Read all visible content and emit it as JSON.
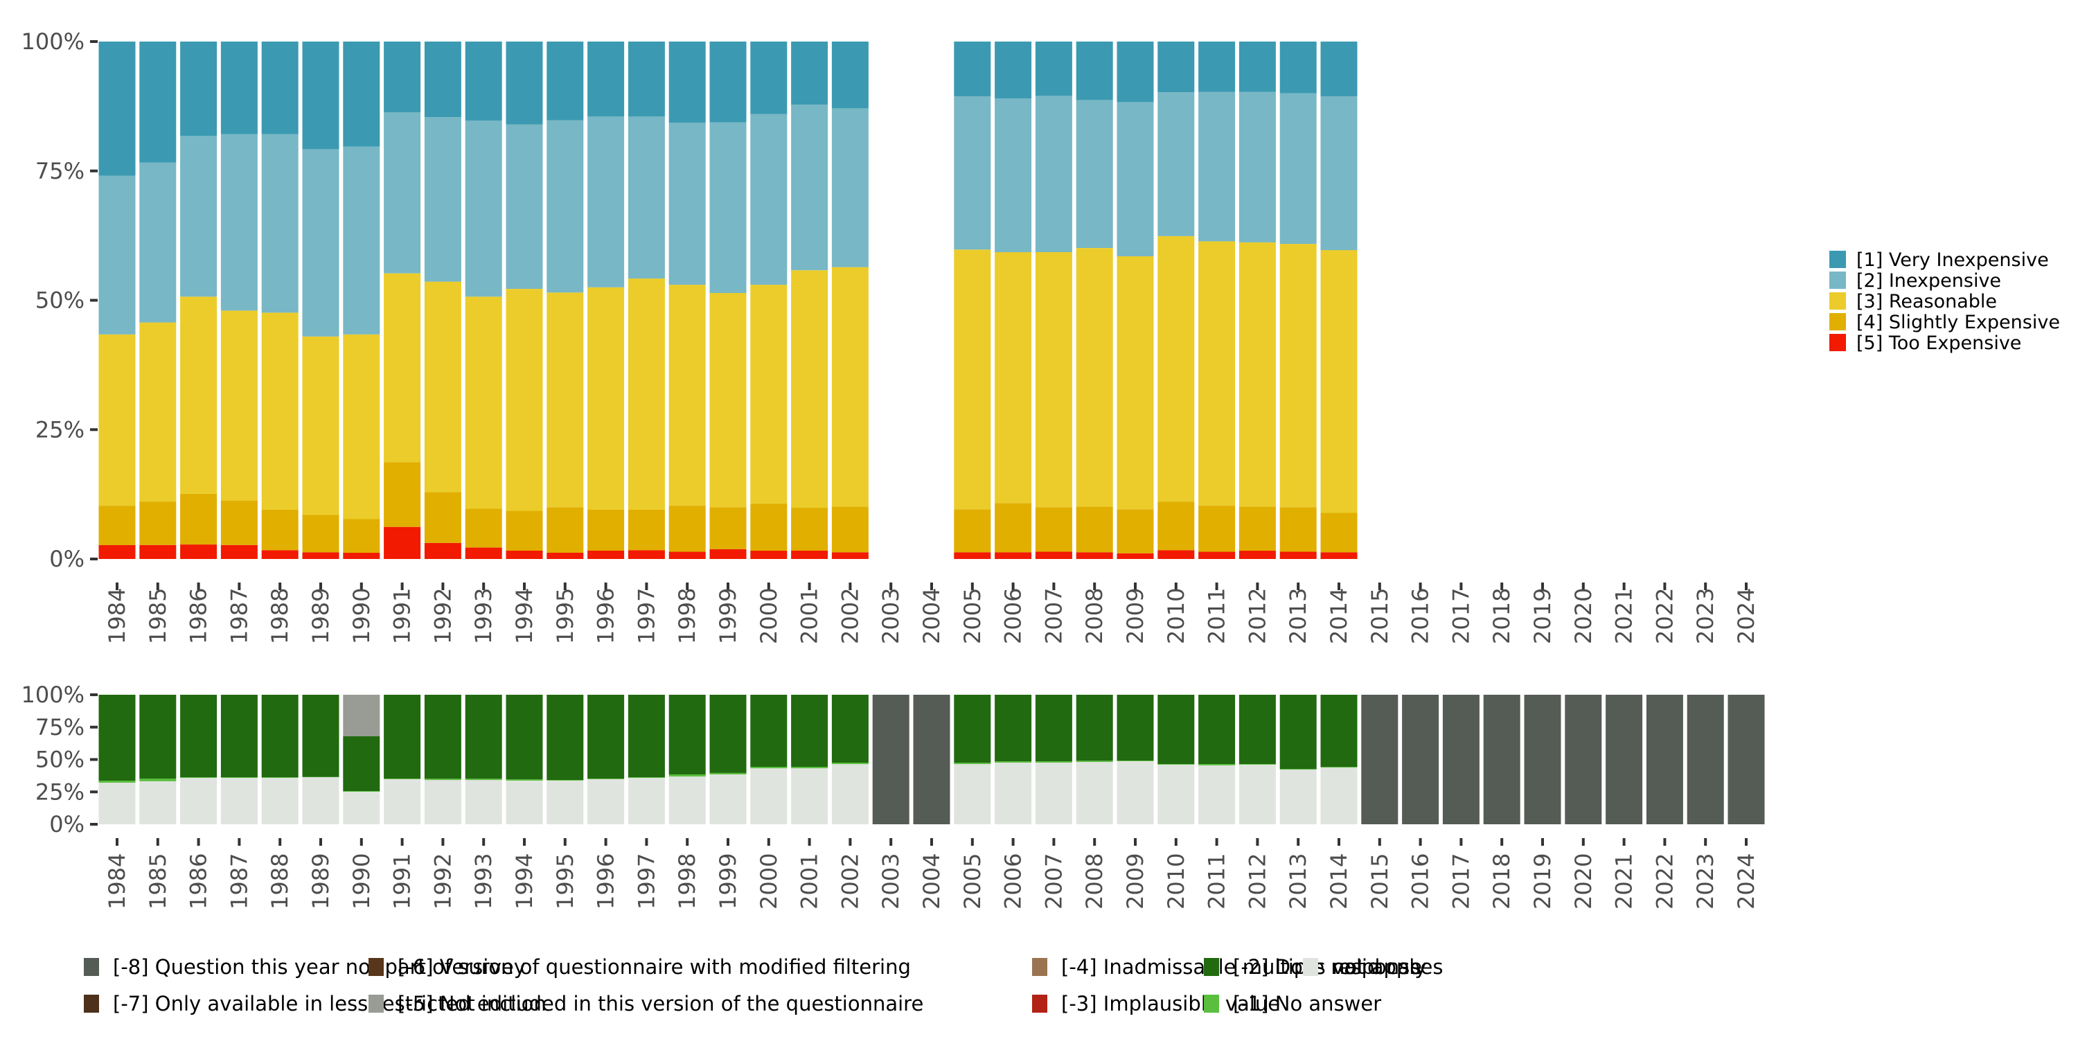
{
  "chart_data": [
    {
      "id": "main",
      "type": "bar",
      "stacked": true,
      "orientation": "vertical",
      "title": "",
      "xlabel": "",
      "ylabel": "",
      "ylim": [
        0,
        100
      ],
      "yticks": [
        "0%",
        "25%",
        "50%",
        "75%",
        "100%"
      ],
      "ytick_values": [
        0,
        25,
        50,
        75,
        100
      ],
      "categories": [
        "1984",
        "1985",
        "1986",
        "1987",
        "1988",
        "1989",
        "1990",
        "1991",
        "1992",
        "1993",
        "1994",
        "1995",
        "1996",
        "1997",
        "1998",
        "1999",
        "2000",
        "2001",
        "2002",
        "2003",
        "2004",
        "2005",
        "2006",
        "2007",
        "2008",
        "2009",
        "2010",
        "2011",
        "2012",
        "2013",
        "2014",
        "2015",
        "2016",
        "2017",
        "2018",
        "2019",
        "2020",
        "2021",
        "2022",
        "2023",
        "2024"
      ],
      "legend_position": "right",
      "series": [
        {
          "name": "[5] Too Expensive",
          "color": "#f21a00",
          "values": [
            2.7,
            2.7,
            2.8,
            2.7,
            1.7,
            1.3,
            1.2,
            6.2,
            3.1,
            2.2,
            1.6,
            1.2,
            1.6,
            1.7,
            1.4,
            1.9,
            1.6,
            1.6,
            1.3,
            null,
            null,
            1.3,
            1.3,
            1.4,
            1.3,
            1.1,
            1.7,
            1.4,
            1.6,
            1.4,
            1.3,
            null,
            null,
            null,
            null,
            null,
            null,
            null,
            null,
            null,
            null
          ]
        },
        {
          "name": "[4] Slightly Expensive",
          "color": "#e1af00",
          "values": [
            7.6,
            8.4,
            9.8,
            8.6,
            7.8,
            7.2,
            6.5,
            12.5,
            9.8,
            7.5,
            7.7,
            8.8,
            7.9,
            7.8,
            8.9,
            8.1,
            9.1,
            8.3,
            8.8,
            null,
            null,
            8.3,
            9.5,
            8.6,
            8.8,
            8.5,
            9.4,
            8.9,
            8.5,
            8.6,
            7.6,
            null,
            null,
            null,
            null,
            null,
            null,
            null,
            null,
            null,
            null
          ]
        },
        {
          "name": "[3] Reasonable",
          "color": "#ebcc2a",
          "values": [
            33.1,
            34.6,
            38.1,
            36.7,
            38.1,
            34.5,
            35.7,
            36.5,
            40.7,
            41.0,
            42.9,
            41.5,
            43.0,
            44.7,
            42.7,
            41.4,
            42.3,
            45.9,
            46.3,
            null,
            null,
            50.2,
            48.5,
            49.3,
            50.0,
            48.9,
            51.3,
            51.1,
            51.1,
            50.9,
            50.8,
            null,
            null,
            null,
            null,
            null,
            null,
            null,
            null,
            null,
            null
          ]
        },
        {
          "name": "[2] Inexpensive",
          "color": "#78b7c5",
          "values": [
            30.7,
            30.9,
            31.1,
            34.1,
            34.5,
            36.2,
            36.3,
            31.1,
            31.8,
            34.0,
            31.8,
            33.3,
            33.0,
            31.3,
            31.3,
            33.0,
            33.0,
            32.0,
            30.7,
            null,
            null,
            29.6,
            29.7,
            30.2,
            28.6,
            29.8,
            27.8,
            28.9,
            29.1,
            29.1,
            29.7,
            null,
            null,
            null,
            null,
            null,
            null,
            null,
            null,
            null,
            null
          ]
        },
        {
          "name": "[1] Very Inexpensive",
          "color": "#3b9ab2",
          "values": [
            25.9,
            23.4,
            18.2,
            17.9,
            17.9,
            20.8,
            20.3,
            13.7,
            14.6,
            15.3,
            16.0,
            15.2,
            14.5,
            14.5,
            15.7,
            15.6,
            14.0,
            12.2,
            12.9,
            null,
            null,
            10.6,
            11.0,
            10.5,
            11.3,
            11.7,
            9.8,
            9.7,
            9.7,
            10.0,
            10.6,
            null,
            null,
            null,
            null,
            null,
            null,
            null,
            null,
            null,
            null
          ]
        }
      ]
    },
    {
      "id": "missing",
      "type": "bar",
      "stacked": true,
      "orientation": "vertical",
      "title": "",
      "xlabel": "",
      "ylabel": "",
      "ylim": [
        0,
        100
      ],
      "yticks": [
        "0%",
        "25%",
        "50%",
        "75%",
        "100%"
      ],
      "ytick_values": [
        0,
        25,
        50,
        75,
        100
      ],
      "categories": [
        "1984",
        "1985",
        "1986",
        "1987",
        "1988",
        "1989",
        "1990",
        "1991",
        "1992",
        "1993",
        "1994",
        "1995",
        "1996",
        "1997",
        "1998",
        "1999",
        "2000",
        "2001",
        "2002",
        "2003",
        "2004",
        "2005",
        "2006",
        "2007",
        "2008",
        "2009",
        "2010",
        "2011",
        "2012",
        "2013",
        "2014",
        "2015",
        "2016",
        "2017",
        "2018",
        "2019",
        "2020",
        "2021",
        "2022",
        "2023",
        "2024"
      ],
      "legend_position": "bottom",
      "series": [
        {
          "name": "valid cases",
          "color": "#e0e4df",
          "values": [
            32.1,
            33.2,
            35.8,
            35.8,
            35.8,
            36.4,
            25.1,
            34.8,
            34.2,
            34.2,
            33.7,
            33.7,
            34.8,
            35.8,
            36.9,
            38.5,
            43.3,
            43.3,
            46.5,
            0,
            0,
            46.5,
            47.6,
            47.6,
            48.1,
            48.7,
            46.0,
            45.5,
            46.0,
            42.2,
            43.8,
            0,
            0,
            0,
            0,
            0,
            0,
            0,
            0,
            0,
            0
          ]
        },
        {
          "name": "[-1] No answer",
          "color": "#5bbf3e",
          "values": [
            1.6,
            2.1,
            0.5,
            0.5,
            0.5,
            0.2,
            0.5,
            0.5,
            1.0,
            1.0,
            1.0,
            0.5,
            0.5,
            0.5,
            1.6,
            1.1,
            1.1,
            1.1,
            1.1,
            0,
            0,
            1.0,
            1.0,
            1.0,
            1.0,
            0.5,
            0.5,
            1.0,
            0.5,
            0.5,
            0.5,
            0,
            0,
            0,
            0,
            0,
            0,
            0,
            0,
            0,
            0
          ]
        },
        {
          "name": "[-2] Does not apply",
          "color": "#216a10",
          "values": [
            66.3,
            64.7,
            63.7,
            63.7,
            63.7,
            63.4,
            42.3,
            64.7,
            64.8,
            64.8,
            65.3,
            65.8,
            64.7,
            63.7,
            61.5,
            60.4,
            55.6,
            55.6,
            52.4,
            0,
            0,
            52.5,
            51.4,
            51.4,
            50.9,
            50.8,
            53.5,
            53.5,
            53.5,
            57.3,
            55.7,
            0,
            0,
            0,
            0,
            0,
            0,
            0,
            0,
            0,
            0
          ]
        },
        {
          "name": "[-3] Implausible value",
          "color": "#b22215",
          "values": [
            0,
            0,
            0,
            0,
            0,
            0,
            0,
            0,
            0,
            0,
            0,
            0,
            0,
            0,
            0,
            0,
            0,
            0,
            0,
            0,
            0,
            0,
            0,
            0,
            0,
            0,
            0,
            0,
            0,
            0,
            0,
            0,
            0,
            0,
            0,
            0,
            0,
            0,
            0,
            0,
            0
          ]
        },
        {
          "name": "[-4] Inadmissable multiple response",
          "color": "#9a7450",
          "values": [
            0,
            0,
            0,
            0,
            0,
            0,
            0,
            0,
            0,
            0,
            0,
            0,
            0,
            0,
            0,
            0,
            0,
            0,
            0,
            0,
            0,
            0,
            0,
            0,
            0,
            0,
            0,
            0,
            0,
            0,
            0,
            0,
            0,
            0,
            0,
            0,
            0,
            0,
            0,
            0,
            0
          ]
        },
        {
          "name": "[-5] Not included in this version of the questionnaire",
          "color": "#999b95",
          "values": [
            0,
            0,
            0,
            0,
            0,
            0,
            32.1,
            0,
            0,
            0,
            0,
            0,
            0,
            0,
            0,
            0,
            0,
            0,
            0,
            0,
            0,
            0,
            0,
            0,
            0,
            0,
            0,
            0,
            0,
            0,
            0,
            0,
            0,
            0,
            0,
            0,
            0,
            0,
            0,
            0,
            0
          ]
        },
        {
          "name": "[-6] Version of questionnaire with modified filtering",
          "color": "#58361a",
          "values": [
            0,
            0,
            0,
            0,
            0,
            0,
            0,
            0,
            0,
            0,
            0,
            0,
            0,
            0,
            0,
            0,
            0,
            0,
            0,
            0,
            0,
            0,
            0,
            0,
            0,
            0,
            0,
            0,
            0,
            0,
            0,
            0,
            0,
            0,
            0,
            0,
            0,
            0,
            0,
            0,
            0
          ]
        },
        {
          "name": "[-7] Only available in less restricted edition",
          "color": "#4d311b",
          "values": [
            0,
            0,
            0,
            0,
            0,
            0,
            0,
            0,
            0,
            0,
            0,
            0,
            0,
            0,
            0,
            0,
            0,
            0,
            0,
            0,
            0,
            0,
            0,
            0,
            0,
            0,
            0,
            0,
            0,
            0,
            0,
            0,
            0,
            0,
            0,
            0,
            0,
            0,
            0,
            0,
            0
          ]
        },
        {
          "name": "[-8] Question this year not part of survey",
          "color": "#555b55",
          "values": [
            0,
            0,
            0,
            0,
            0,
            0,
            0,
            0,
            0,
            0,
            0,
            0,
            0,
            0,
            0,
            0,
            0,
            0,
            0,
            100,
            100,
            0,
            0,
            0,
            0,
            0,
            0,
            0,
            0,
            0,
            0,
            100,
            100,
            100,
            100,
            100,
            100,
            100,
            100,
            100,
            100
          ]
        }
      ]
    }
  ],
  "legends": {
    "main": [
      {
        "label": "[1] Very Inexpensive",
        "color": "#3b9ab2"
      },
      {
        "label": "[2] Inexpensive",
        "color": "#78b7c5"
      },
      {
        "label": "[3] Reasonable",
        "color": "#ebcc2a"
      },
      {
        "label": "[4] Slightly Expensive",
        "color": "#e1af00"
      },
      {
        "label": "[5] Too Expensive",
        "color": "#f21a00"
      }
    ],
    "missing": [
      {
        "label": "[-8] Question this year not part of survey",
        "color": "#555b55"
      },
      {
        "label": "[-7] Only available in less restricted edition",
        "color": "#4d311b"
      },
      {
        "label": "[-6] Version of questionnaire with modified filtering",
        "color": "#58361a"
      },
      {
        "label": "[-5] Not included in this version of the questionnaire",
        "color": "#999b95"
      },
      {
        "label": "[-4] Inadmissable multiple response",
        "color": "#9a7450"
      },
      {
        "label": "[-3] Implausible value",
        "color": "#b22215"
      },
      {
        "label": "[-2] Does not apply",
        "color": "#216a10"
      },
      {
        "label": "[-1] No answer",
        "color": "#5bbf3e"
      },
      {
        "label": "valid cases",
        "color": "#e0e4df"
      }
    ]
  }
}
